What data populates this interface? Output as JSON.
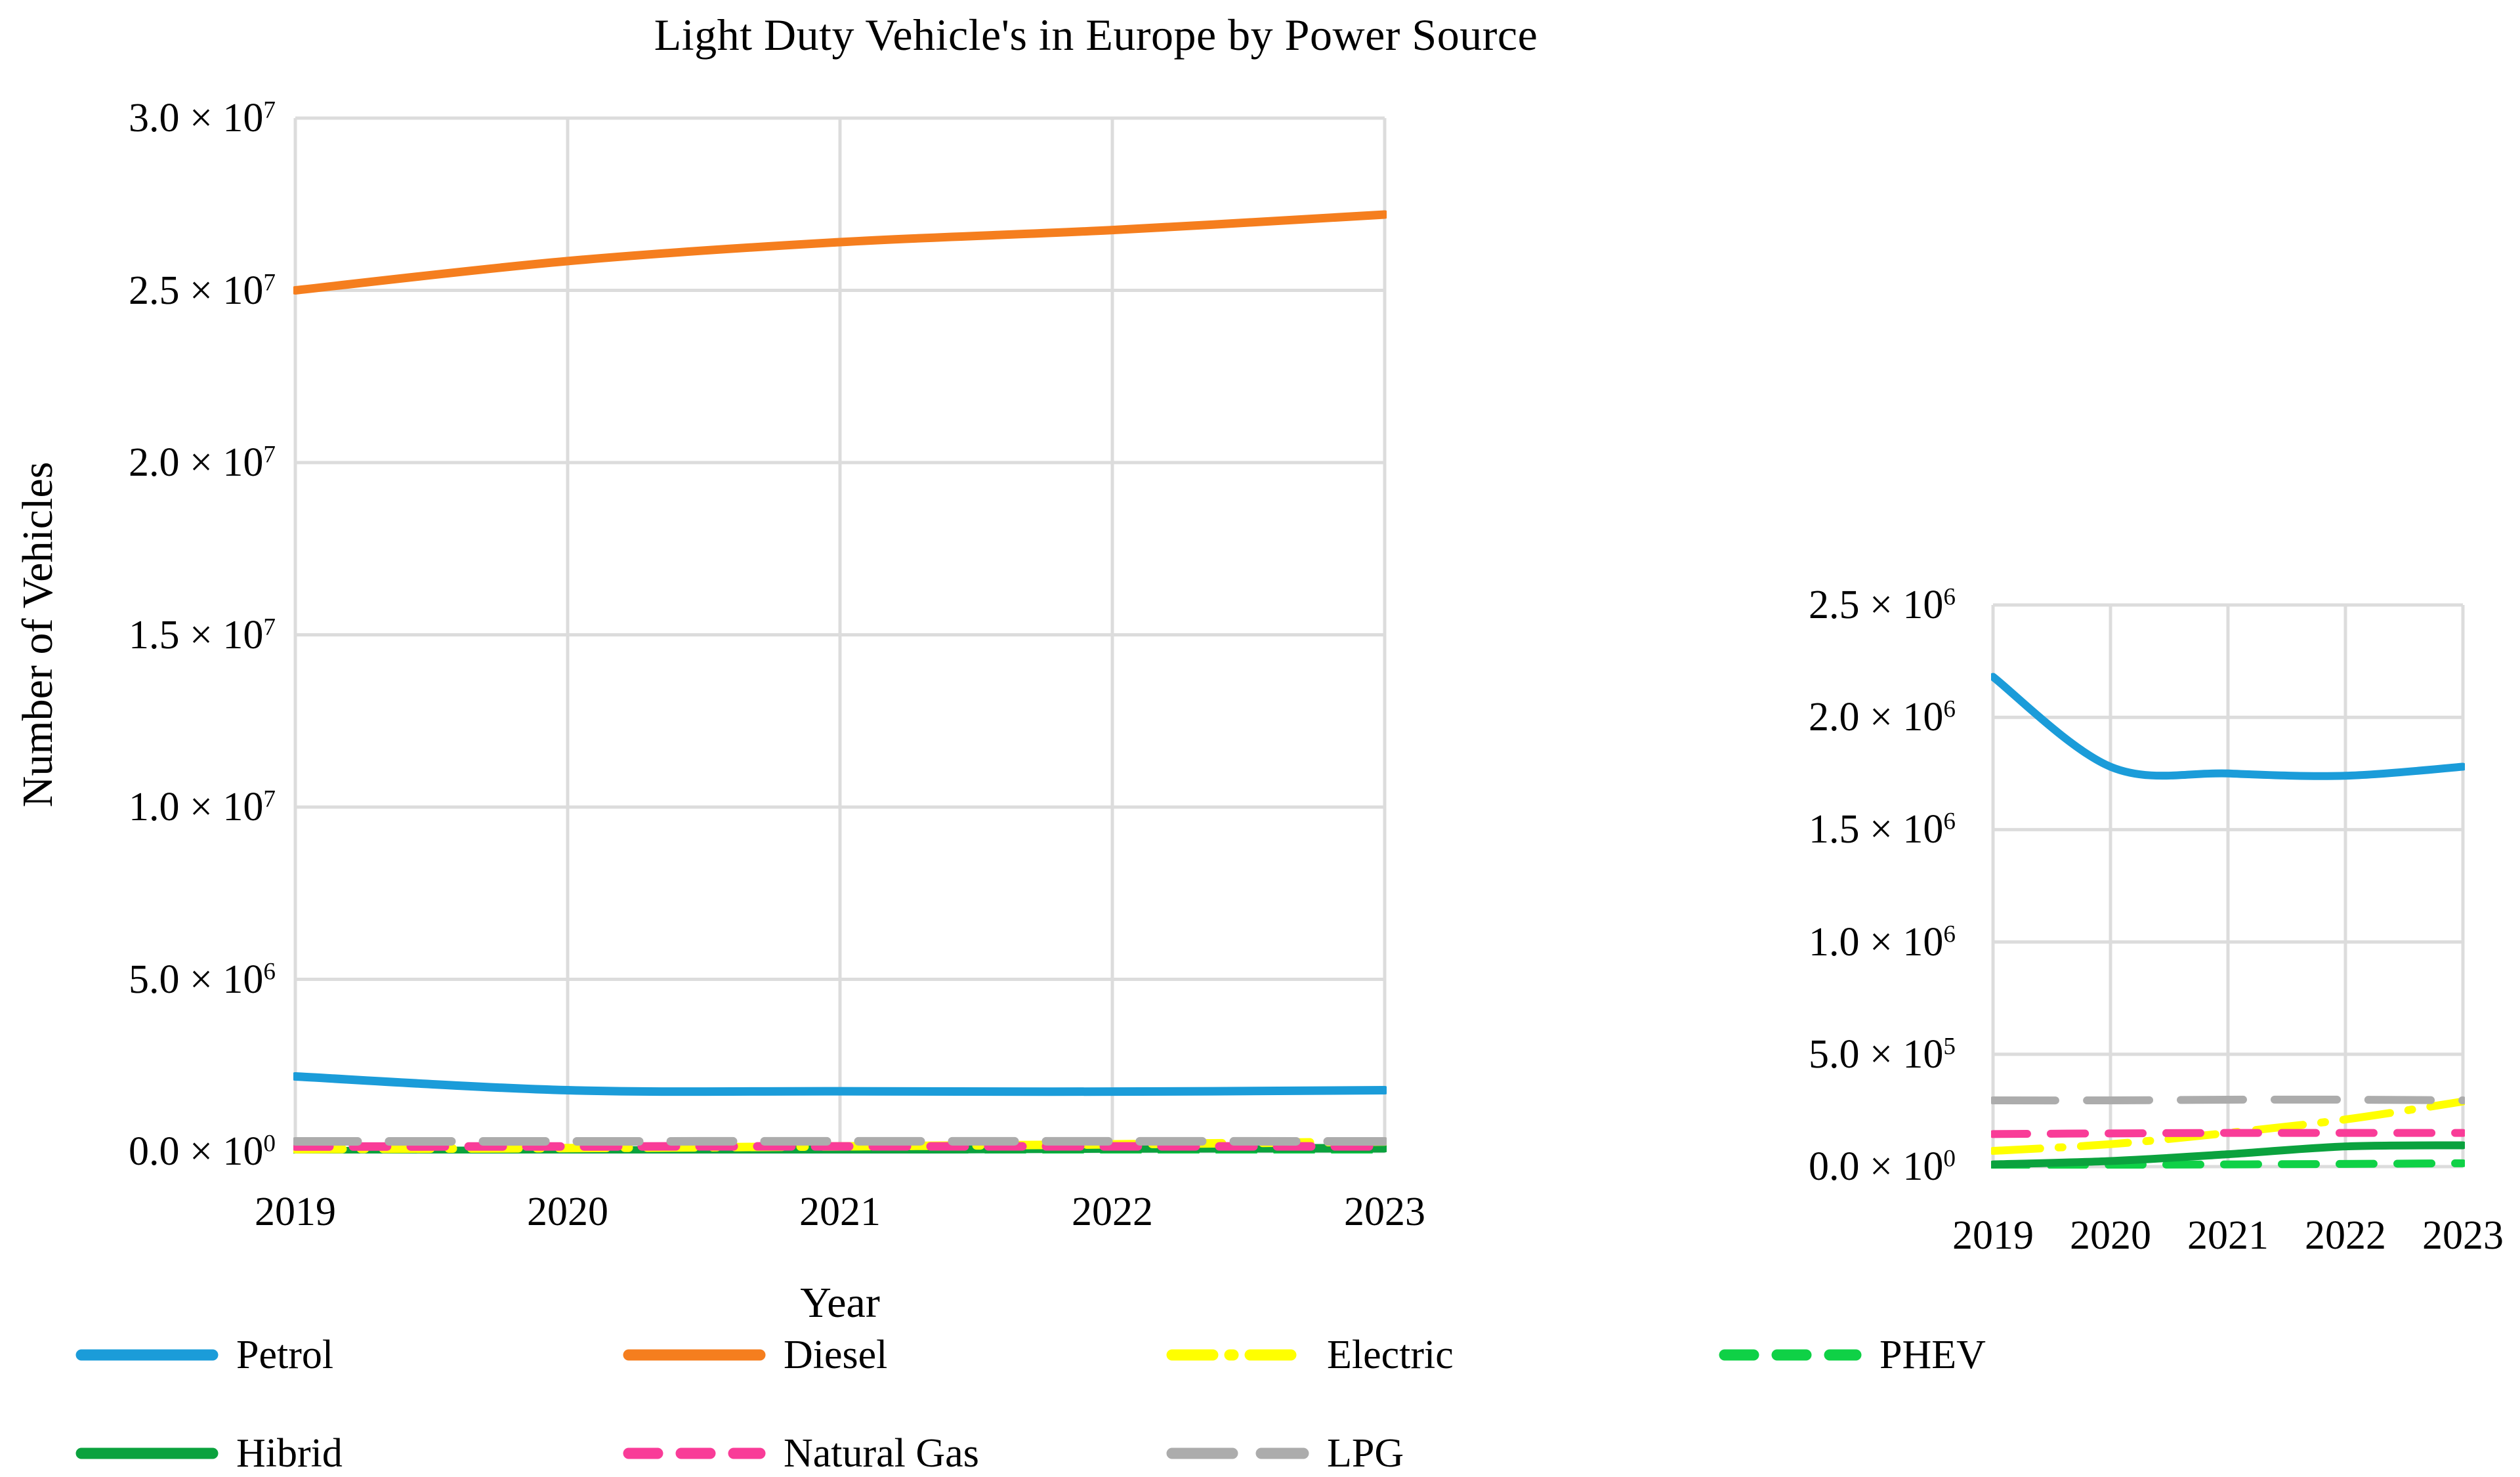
{
  "title": "Light Duty Vehicle's in Europe by Power Source",
  "chart_data": [
    {
      "type": "line",
      "role": "main",
      "title": "Light Duty Vehicle's in Europe by Power Source",
      "xlabel": "Year",
      "ylabel": "Number of Vehicles",
      "x": [
        2019,
        2020,
        2021,
        2022,
        2023
      ],
      "xticks": [
        "2019",
        "2020",
        "2021",
        "2022",
        "2023"
      ],
      "ylim": [
        0,
        30000000
      ],
      "grid": true,
      "legend_position": "bottom",
      "yticks": [
        {
          "value": 30000000,
          "text": "3.0 × 10",
          "exp": "7"
        },
        {
          "value": 25000000,
          "text": "2.5 × 10",
          "exp": "7"
        },
        {
          "value": 20000000,
          "text": "2.0 × 10",
          "exp": "7"
        },
        {
          "value": 15000000,
          "text": "1.5 × 10",
          "exp": "7"
        },
        {
          "value": 10000000,
          "text": "1.0 × 10",
          "exp": "7"
        },
        {
          "value": 5000000,
          "text": "5.0 × 10",
          "exp": "6"
        },
        {
          "value": 0,
          "text": "0.0 × 10",
          "exp": "0"
        }
      ],
      "series": [
        {
          "name": "Petrol",
          "color": "#1B9CD9",
          "dash": "solid",
          "values": [
            2180000,
            1780000,
            1750000,
            1740000,
            1780000
          ]
        },
        {
          "name": "Diesel",
          "color": "#F57E1E",
          "dash": "solid",
          "values": [
            25000000,
            25850000,
            26400000,
            26750000,
            27200000
          ]
        },
        {
          "name": "Electric",
          "color": "#FFFF00",
          "dash": "dash-dot",
          "values": [
            70000,
            100000,
            150000,
            210000,
            290000
          ]
        },
        {
          "name": "PHEV",
          "color": "#0FD146",
          "dash": "dash",
          "values": [
            5000,
            8000,
            10000,
            12000,
            15000
          ]
        },
        {
          "name": "Hibrid",
          "color": "#0BA23E",
          "dash": "solid",
          "values": [
            10000,
            25000,
            55000,
            90000,
            95000
          ]
        },
        {
          "name": "Natural Gas",
          "color": "#F93C98",
          "dash": "dash",
          "values": [
            145000,
            148000,
            150000,
            150000,
            150000
          ]
        },
        {
          "name": "LPG",
          "color": "#ACACAC",
          "dash": "long-dash",
          "values": [
            295000,
            295000,
            298000,
            298000,
            295000
          ]
        }
      ]
    },
    {
      "type": "line",
      "role": "inset-zoom-low-range",
      "x": [
        2019,
        2020,
        2021,
        2022,
        2023
      ],
      "xticks": [
        "2019",
        "2020",
        "2021",
        "2022",
        "2023"
      ],
      "ylim": [
        0,
        2500000
      ],
      "grid": true,
      "yticks": [
        {
          "value": 2500000,
          "text": "2.5 × 10",
          "exp": "6"
        },
        {
          "value": 2000000,
          "text": "2.0 × 10",
          "exp": "6"
        },
        {
          "value": 1500000,
          "text": "1.5 × 10",
          "exp": "6"
        },
        {
          "value": 1000000,
          "text": "1.0 × 10",
          "exp": "6"
        },
        {
          "value": 500000,
          "text": "5.0 × 10",
          "exp": "5"
        },
        {
          "value": 0,
          "text": "0.0 × 10",
          "exp": "0"
        }
      ],
      "series": [
        {
          "name": "Petrol",
          "color": "#1B9CD9",
          "dash": "solid",
          "values": [
            2180000,
            1780000,
            1750000,
            1740000,
            1780000
          ]
        },
        {
          "name": "Diesel",
          "color": "#F57E1E",
          "dash": "solid",
          "values": [
            25000000,
            25850000,
            26400000,
            26750000,
            27200000
          ]
        },
        {
          "name": "Electric",
          "color": "#FFFF00",
          "dash": "dash-dot",
          "values": [
            70000,
            100000,
            150000,
            210000,
            290000
          ]
        },
        {
          "name": "PHEV",
          "color": "#0FD146",
          "dash": "dash",
          "values": [
            5000,
            8000,
            10000,
            12000,
            15000
          ]
        },
        {
          "name": "Hibrid",
          "color": "#0BA23E",
          "dash": "solid",
          "values": [
            10000,
            25000,
            55000,
            90000,
            95000
          ]
        },
        {
          "name": "Natural Gas",
          "color": "#F93C98",
          "dash": "dash",
          "values": [
            145000,
            148000,
            150000,
            150000,
            150000
          ]
        },
        {
          "name": "LPG",
          "color": "#ACACAC",
          "dash": "long-dash",
          "values": [
            295000,
            295000,
            298000,
            298000,
            295000
          ]
        }
      ]
    }
  ],
  "legend": {
    "rows": [
      [
        {
          "label": "Petrol"
        },
        {
          "label": "Diesel"
        },
        {
          "label": "Electric"
        },
        {
          "label": "PHEV"
        }
      ],
      [
        {
          "label": "Hibrid"
        },
        {
          "label": "Natural Gas"
        },
        {
          "label": "LPG"
        }
      ]
    ]
  },
  "colors": {
    "grid": "#DCDCDC",
    "text": "#000000",
    "background": "#FFFFFF"
  }
}
